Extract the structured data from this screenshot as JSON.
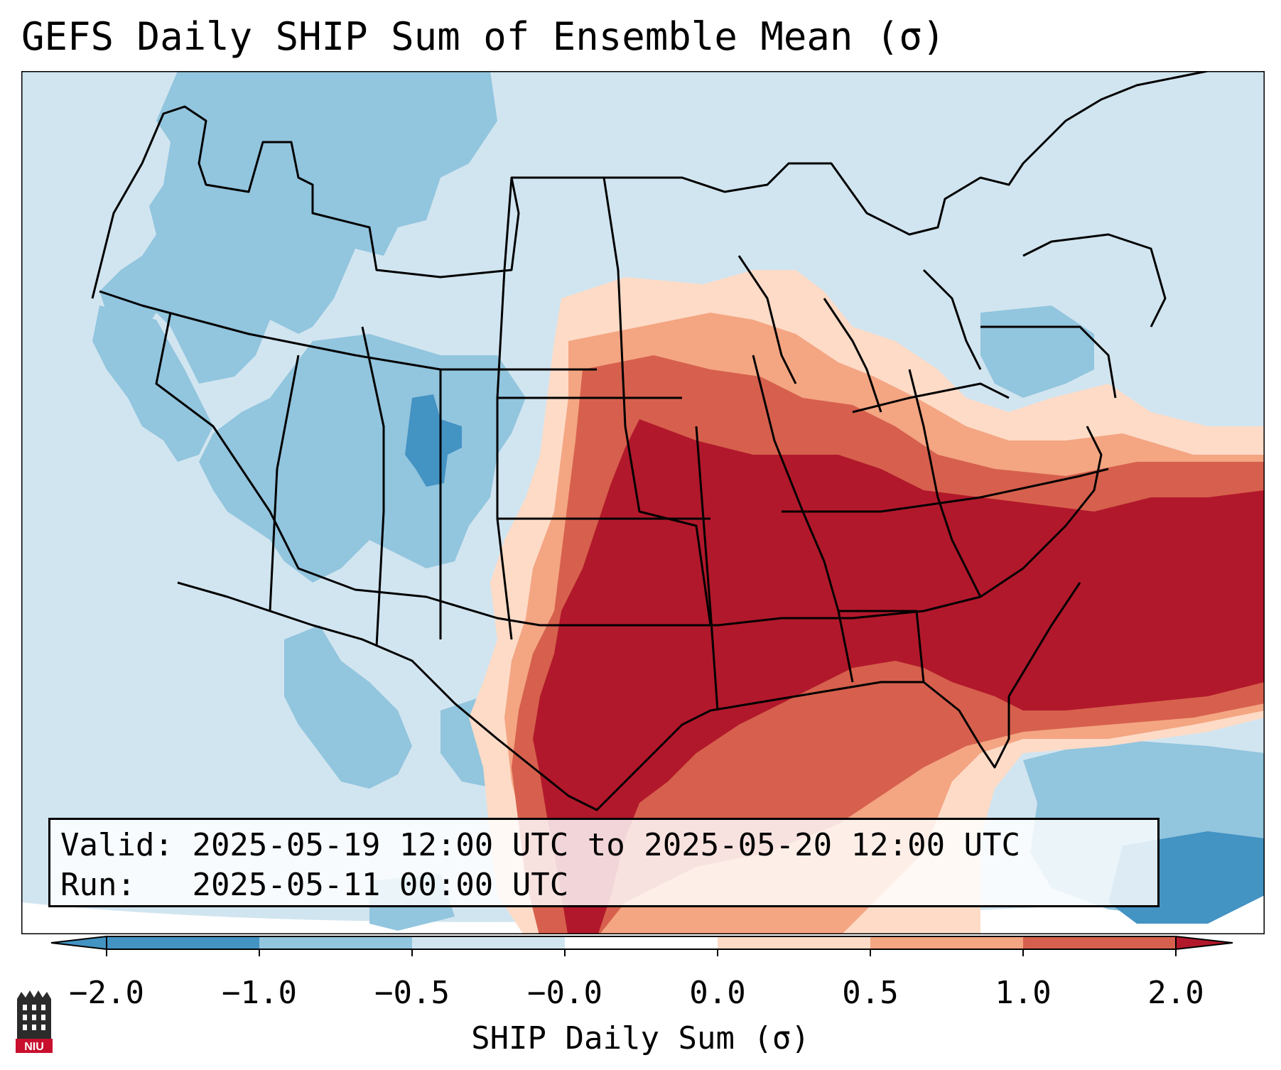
{
  "title": "GEFS Daily SHIP Sum of Ensemble Mean (σ)",
  "info": {
    "valid_label": "Valid:",
    "valid_value": "2025-05-19 12:00 UTC to 2025-05-20 12:00 UTC",
    "run_label": "Run:",
    "run_value": "2025-05-11 00:00 UTC"
  },
  "colorbar": {
    "label": "SHIP Daily Sum (σ)",
    "ticks": [
      "−2.0",
      "−1.0",
      "−0.5",
      "−0.0",
      "0.0",
      "0.5",
      "1.0",
      "2.0"
    ],
    "colors": [
      "#4393c3",
      "#92c5de",
      "#d1e5f0",
      "#ffffff",
      "#fddbc7",
      "#f4a582",
      "#d6604d",
      "#b2182b"
    ],
    "extend": "both"
  },
  "logo": {
    "text": "NIU"
  },
  "map": {
    "region": "Contiguous United States",
    "field_colors": {
      "strong_negative": "#4393c3",
      "negative": "#92c5de",
      "weak_negative": "#d1e5f0",
      "weak_positive": "#fddbc7",
      "positive": "#f4a582",
      "strong_positive": "#d6604d",
      "extreme_positive": "#b2182b"
    }
  }
}
